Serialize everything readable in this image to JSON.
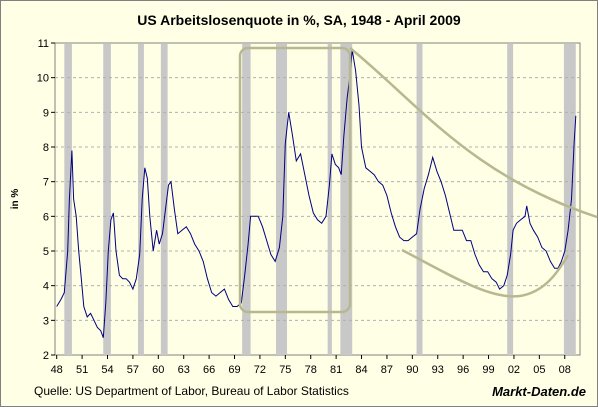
{
  "chart_data": {
    "type": "line",
    "title": "US Arbeitslosenquote in %, SA, 1948 -  April 2009",
    "y_label": "in %",
    "source": "Quelle: US Department of Labor, Bureau of Labor Statistics",
    "brand": "Markt-Daten.de",
    "color": "#000080",
    "shade_color": "#c8c8c8",
    "grid": true,
    "xlim": [
      1947.8,
      2009.8
    ],
    "ylim": [
      2,
      11
    ],
    "yticks": [
      2,
      3,
      4,
      5,
      6,
      7,
      8,
      9,
      10,
      11
    ],
    "xticks": [
      {
        "value": 1948,
        "label": "48"
      },
      {
        "value": 1951,
        "label": "51"
      },
      {
        "value": 1954,
        "label": "54"
      },
      {
        "value": 1957,
        "label": "57"
      },
      {
        "value": 1960,
        "label": "60"
      },
      {
        "value": 1963,
        "label": "63"
      },
      {
        "value": 1966,
        "label": "66"
      },
      {
        "value": 1969,
        "label": "69"
      },
      {
        "value": 1972,
        "label": "72"
      },
      {
        "value": 1975,
        "label": "75"
      },
      {
        "value": 1978,
        "label": "78"
      },
      {
        "value": 1981,
        "label": "81"
      },
      {
        "value": 1984,
        "label": "84"
      },
      {
        "value": 1987,
        "label": "87"
      },
      {
        "value": 1990,
        "label": "90"
      },
      {
        "value": 1993,
        "label": "93"
      },
      {
        "value": 1996,
        "label": "96"
      },
      {
        "value": 1999,
        "label": "99"
      },
      {
        "value": 2002,
        "label": "02"
      },
      {
        "value": 2005,
        "label": "05"
      },
      {
        "value": 2008,
        "label": "08"
      }
    ],
    "shaded_periods": [
      [
        1948.9,
        1949.8
      ],
      [
        1953.5,
        1954.4
      ],
      [
        1957.6,
        1958.3
      ],
      [
        1960.3,
        1961.1
      ],
      [
        1969.9,
        1970.9
      ],
      [
        1973.9,
        1975.2
      ],
      [
        1980.0,
        1980.5
      ],
      [
        1981.5,
        1982.9
      ],
      [
        1990.5,
        1991.2
      ],
      [
        2001.2,
        2001.9
      ],
      [
        2007.9,
        2009.3
      ]
    ],
    "x": [
      1948.0,
      1948.5,
      1948.9,
      1949.3,
      1949.5,
      1949.8,
      1950.0,
      1950.3,
      1950.6,
      1950.9,
      1951.2,
      1951.6,
      1952.0,
      1952.4,
      1952.8,
      1953.2,
      1953.5,
      1953.8,
      1954.1,
      1954.4,
      1954.7,
      1955.0,
      1955.4,
      1955.8,
      1956.2,
      1956.6,
      1957.0,
      1957.4,
      1957.8,
      1958.1,
      1958.4,
      1958.7,
      1959.0,
      1959.4,
      1959.8,
      1960.1,
      1960.5,
      1960.9,
      1961.2,
      1961.5,
      1961.9,
      1962.3,
      1962.8,
      1963.3,
      1963.8,
      1964.3,
      1964.8,
      1965.3,
      1965.8,
      1966.3,
      1966.8,
      1967.3,
      1967.8,
      1968.3,
      1968.8,
      1969.3,
      1969.8,
      1970.2,
      1970.6,
      1970.9,
      1971.3,
      1971.8,
      1972.3,
      1972.8,
      1973.3,
      1973.8,
      1974.3,
      1974.7,
      1975.0,
      1975.4,
      1975.8,
      1976.3,
      1976.8,
      1977.3,
      1977.8,
      1978.3,
      1978.8,
      1979.3,
      1979.8,
      1980.2,
      1980.5,
      1980.9,
      1981.3,
      1981.6,
      1981.9,
      1982.3,
      1982.6,
      1982.9,
      1983.3,
      1983.7,
      1984.0,
      1984.5,
      1985.0,
      1985.5,
      1986.0,
      1986.5,
      1987.0,
      1987.5,
      1988.0,
      1988.5,
      1989.0,
      1989.5,
      1990.0,
      1990.5,
      1990.9,
      1991.4,
      1991.9,
      1992.4,
      1992.9,
      1993.4,
      1993.9,
      1994.4,
      1994.9,
      1995.4,
      1995.9,
      1996.4,
      1996.9,
      1997.4,
      1997.9,
      1998.4,
      1998.9,
      1999.4,
      1999.9,
      2000.3,
      2000.8,
      2001.2,
      2001.6,
      2001.9,
      2002.3,
      2002.8,
      2003.3,
      2003.5,
      2003.9,
      2004.3,
      2004.8,
      2005.3,
      2005.8,
      2006.3,
      2006.8,
      2007.2,
      2007.6,
      2008.0,
      2008.4,
      2008.8,
      2009.1,
      2009.3
    ],
    "values": [
      3.4,
      3.6,
      3.8,
      5.0,
      6.5,
      7.9,
      6.5,
      6.0,
      5.0,
      4.2,
      3.4,
      3.1,
      3.2,
      3.0,
      2.8,
      2.7,
      2.5,
      3.5,
      5.0,
      5.9,
      6.1,
      5.0,
      4.3,
      4.2,
      4.2,
      4.1,
      3.9,
      4.2,
      4.9,
      6.5,
      7.4,
      7.1,
      6.0,
      5.0,
      5.6,
      5.2,
      5.5,
      6.3,
      6.9,
      7.0,
      6.2,
      5.5,
      5.6,
      5.7,
      5.5,
      5.2,
      5.0,
      4.7,
      4.2,
      3.8,
      3.7,
      3.8,
      3.9,
      3.6,
      3.4,
      3.4,
      3.5,
      4.3,
      5.2,
      6.0,
      6.0,
      6.0,
      5.7,
      5.3,
      4.9,
      4.7,
      5.1,
      6.0,
      8.1,
      9.0,
      8.4,
      7.6,
      7.8,
      7.2,
      6.6,
      6.1,
      5.9,
      5.8,
      6.0,
      6.9,
      7.8,
      7.5,
      7.4,
      7.2,
      8.3,
      9.4,
      10.0,
      10.8,
      10.2,
      9.2,
      8.0,
      7.4,
      7.3,
      7.2,
      7.0,
      6.9,
      6.6,
      6.1,
      5.7,
      5.4,
      5.3,
      5.3,
      5.4,
      5.5,
      6.2,
      6.8,
      7.2,
      7.7,
      7.3,
      7.0,
      6.6,
      6.1,
      5.6,
      5.6,
      5.6,
      5.3,
      5.3,
      4.9,
      4.6,
      4.4,
      4.4,
      4.2,
      4.1,
      3.9,
      4.0,
      4.3,
      4.9,
      5.6,
      5.8,
      5.9,
      6.0,
      6.3,
      5.8,
      5.6,
      5.4,
      5.1,
      5.0,
      4.7,
      4.5,
      4.5,
      4.7,
      5.0,
      5.6,
      6.5,
      8.1,
      8.9
    ]
  }
}
